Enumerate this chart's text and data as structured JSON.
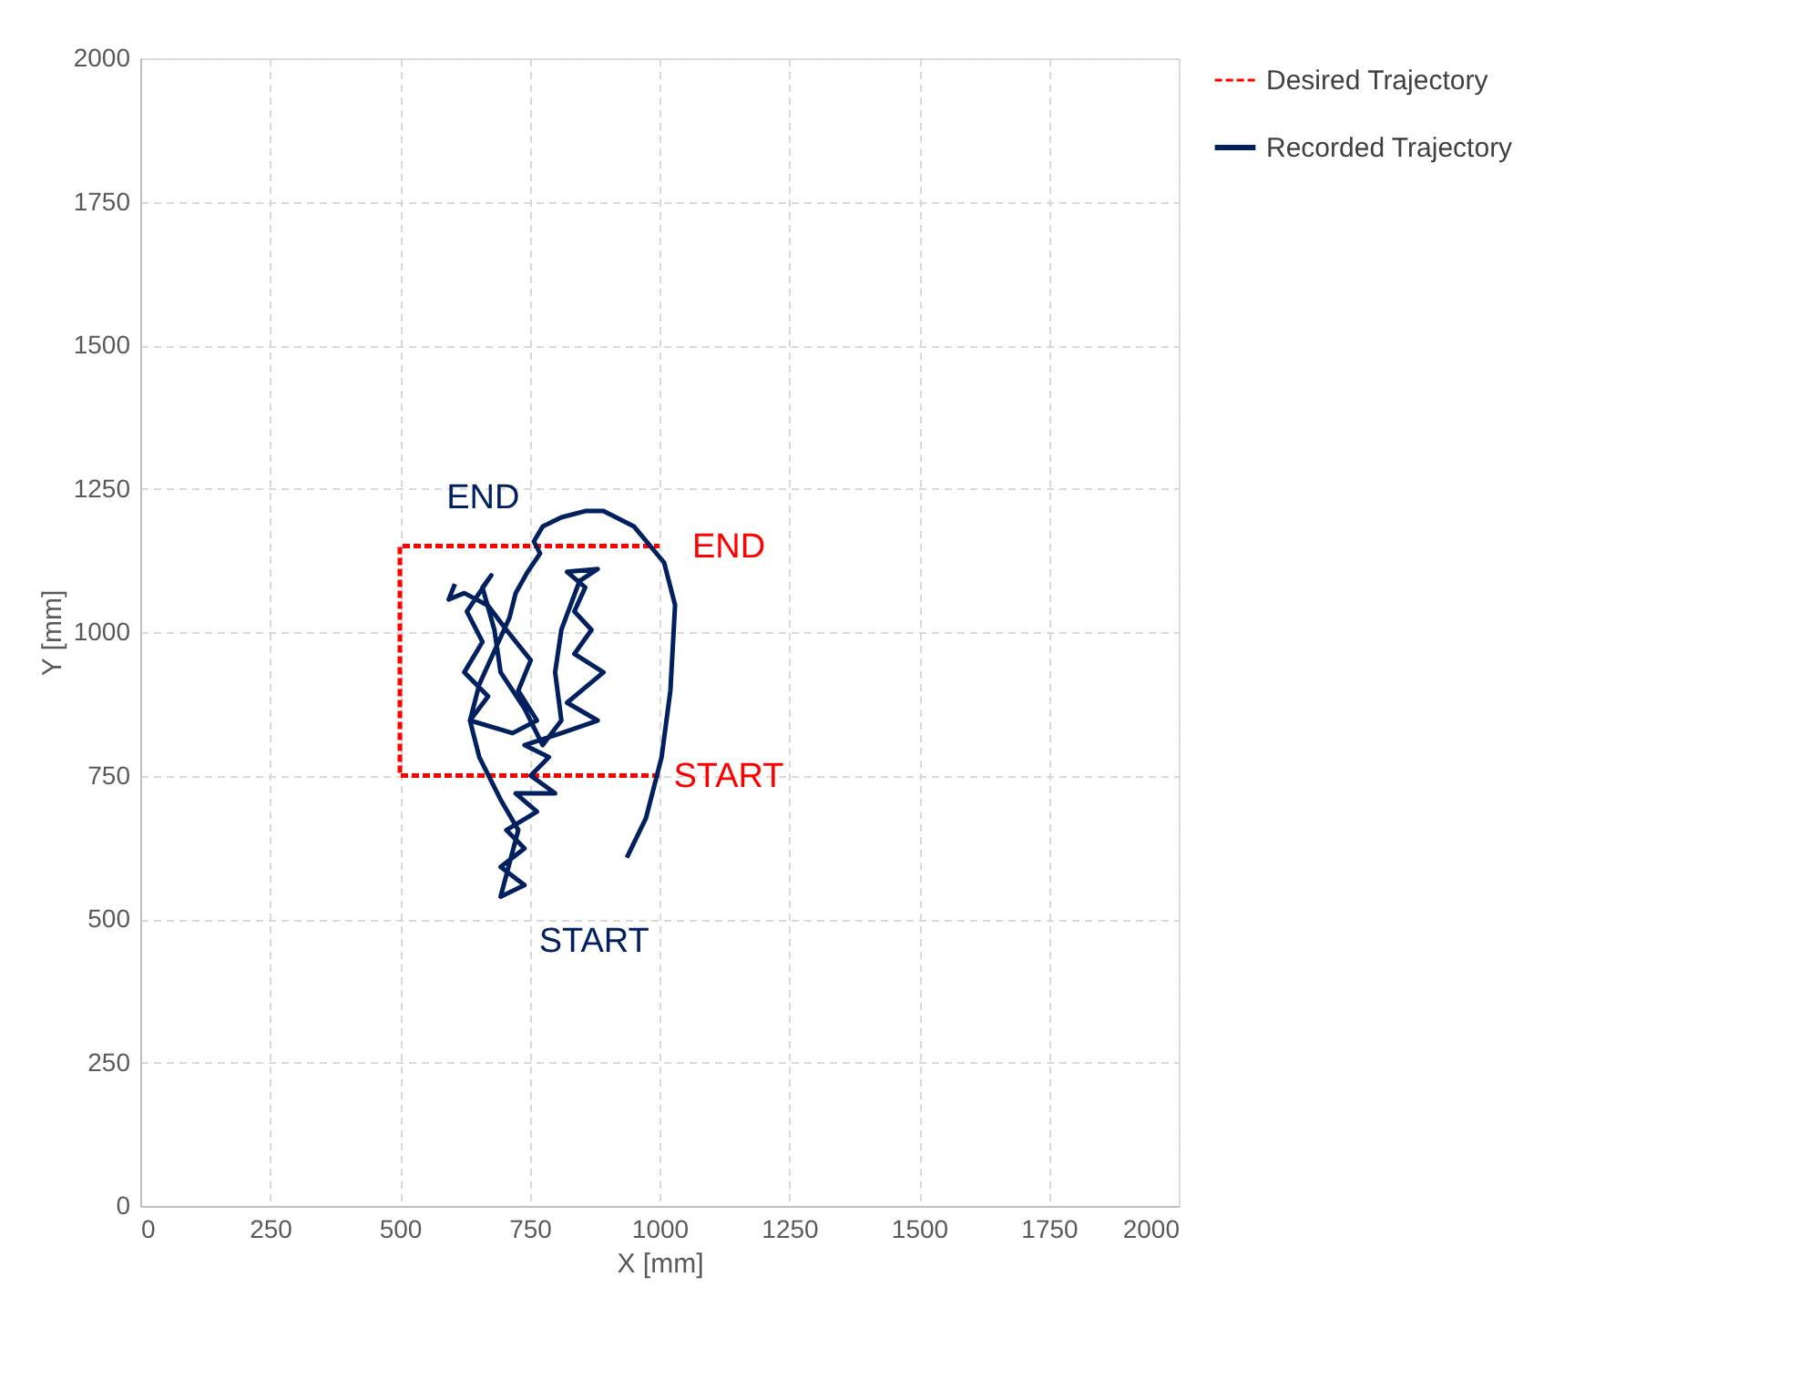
{
  "chart_data": {
    "type": "line",
    "xlabel": "X [mm]",
    "ylabel": "Y [mm]",
    "xlim": [
      0,
      2000
    ],
    "ylim": [
      0,
      2000
    ],
    "xticks": [
      0,
      250,
      500,
      750,
      1000,
      1250,
      1500,
      1750,
      2000
    ],
    "yticks": [
      0,
      250,
      500,
      750,
      1000,
      1250,
      1500,
      1750,
      2000
    ],
    "grid": true,
    "legend": "right",
    "series": [
      {
        "name": "Desired Trajectory",
        "color": "#ff0000",
        "line_style": "dashed",
        "x": [
          1000,
          500,
          500,
          1000
        ],
        "values": [
          750,
          750,
          1150,
          1150
        ]
      },
      {
        "name": "Recorded Trajectory",
        "color": "#002060",
        "line_style": "solid",
        "x": [
          937,
          974,
          1004,
          1021,
          1030,
          1009,
          951,
          892,
          857,
          811,
          775,
          758,
          770,
          746,
          723,
          711,
          653,
          635,
          653,
          694,
          728,
          694,
          740,
          694,
          740,
          705,
          764,
          723,
          799,
          752,
          787,
          740,
          811,
          881,
          822,
          892,
          836,
          869,
          836,
          857,
          822,
          881,
          846,
          811,
          799,
          811,
          775,
          740,
          694,
          682,
          659,
          676,
          629,
          659,
          624,
          670,
          635,
          717,
          764,
          728,
          752,
          705,
          670,
          624,
          594,
          606
        ],
        "values": [
          607,
          676,
          782,
          898,
          1047,
          1121,
          1184,
          1211,
          1211,
          1200,
          1184,
          1158,
          1137,
          1105,
          1068,
          1025,
          909,
          846,
          782,
          708,
          655,
          539,
          559,
          591,
          623,
          655,
          687,
          719,
          719,
          750,
          782,
          803,
          824,
          846,
          877,
          930,
          962,
          1004,
          1036,
          1078,
          1105,
          1110,
          1089,
          1004,
          930,
          846,
          803,
          867,
          930,
          1004,
          1078,
          1099,
          1036,
          983,
          930,
          888,
          846,
          824,
          846,
          898,
          951,
          1004,
          1046,
          1068,
          1057,
          1084
        ]
      }
    ],
    "annotations": [
      {
        "text": "END",
        "x": 606,
        "y": 1084
      },
      {
        "text": "END",
        "x": 1000,
        "y": 1150
      },
      {
        "text": "START",
        "x": 1000,
        "y": 750
      },
      {
        "text": "START",
        "x": 937,
        "y": 607
      }
    ]
  }
}
